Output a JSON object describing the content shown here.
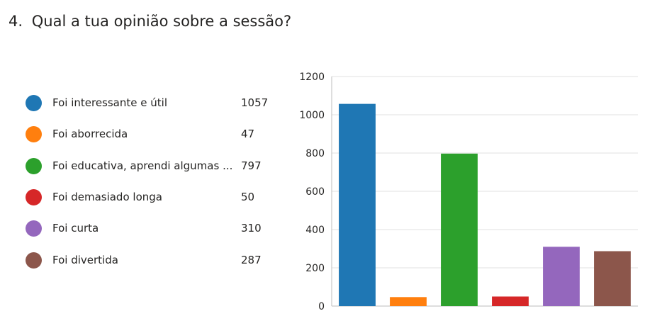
{
  "question": {
    "number": "4.",
    "text": "Qual a tua opinião sobre a sessão?"
  },
  "legend": {
    "items": [
      {
        "label": "Foi interessante e útil",
        "value": "1057",
        "color": "#1f77b4"
      },
      {
        "label": "Foi aborrecida",
        "value": "47",
        "color": "#ff7f0e"
      },
      {
        "label": "Foi educativa, aprendi algumas ...",
        "value": "797",
        "color": "#2ca02c"
      },
      {
        "label": "Foi demasiado longa",
        "value": "50",
        "color": "#d62728"
      },
      {
        "label": "Foi curta",
        "value": "310",
        "color": "#9467bd"
      },
      {
        "label": "Foi divertida",
        "value": "287",
        "color": "#8c564b"
      }
    ]
  },
  "chart_data": {
    "type": "bar",
    "categories": [
      "Foi interessante e útil",
      "Foi aborrecida",
      "Foi educativa, aprendi algumas ...",
      "Foi demasiado longa",
      "Foi curta",
      "Foi divertida"
    ],
    "values": [
      1057,
      47,
      797,
      50,
      310,
      287
    ],
    "colors": [
      "#1f77b4",
      "#ff7f0e",
      "#2ca02c",
      "#d62728",
      "#9467bd",
      "#8c564b"
    ],
    "yticks": [
      0,
      200,
      400,
      600,
      800,
      1000,
      1200
    ],
    "ylim": [
      0,
      1200
    ],
    "grid": true,
    "legend_placement": "left"
  }
}
